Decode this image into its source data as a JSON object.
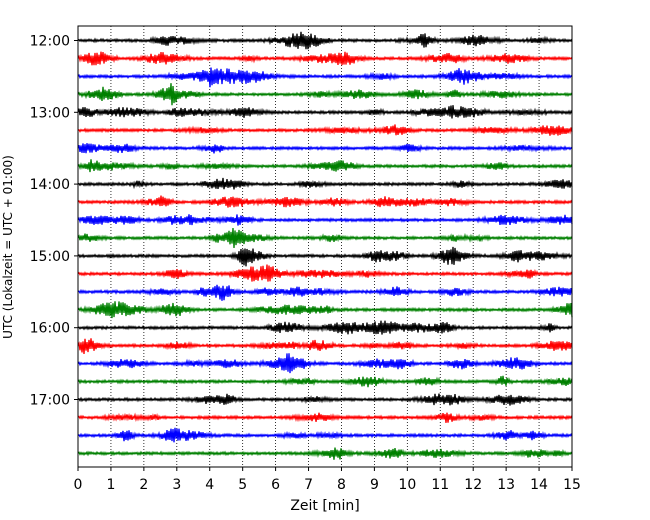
{
  "chart_data": {
    "type": "line",
    "title": "",
    "xlabel": "Zeit  [min]",
    "ylabel": "UTC (Lokalzeit = UTC + 01:00)",
    "xlim": [
      0,
      15
    ],
    "x_ticks": [
      "0",
      "1",
      "2",
      "3",
      "4",
      "5",
      "6",
      "7",
      "8",
      "9",
      "10",
      "11",
      "12",
      "13",
      "14",
      "15"
    ],
    "y_ticks": [
      "12:00",
      "13:00",
      "14:00",
      "15:00",
      "16:00",
      "17:00"
    ],
    "grid": "vertical dotted at each minute",
    "trace_interval_min": 15,
    "start_time": "12:00",
    "trace_count": 24,
    "trace_colors": [
      "#000000",
      "#ff0000",
      "#0000ff",
      "#008000"
    ],
    "description": "Helicorder seismogram: each row is a 15-minute segment of ground motion, rows stacked top to bottom from 12:00 UTC onward, colors cycling black, red, blue, green."
  }
}
